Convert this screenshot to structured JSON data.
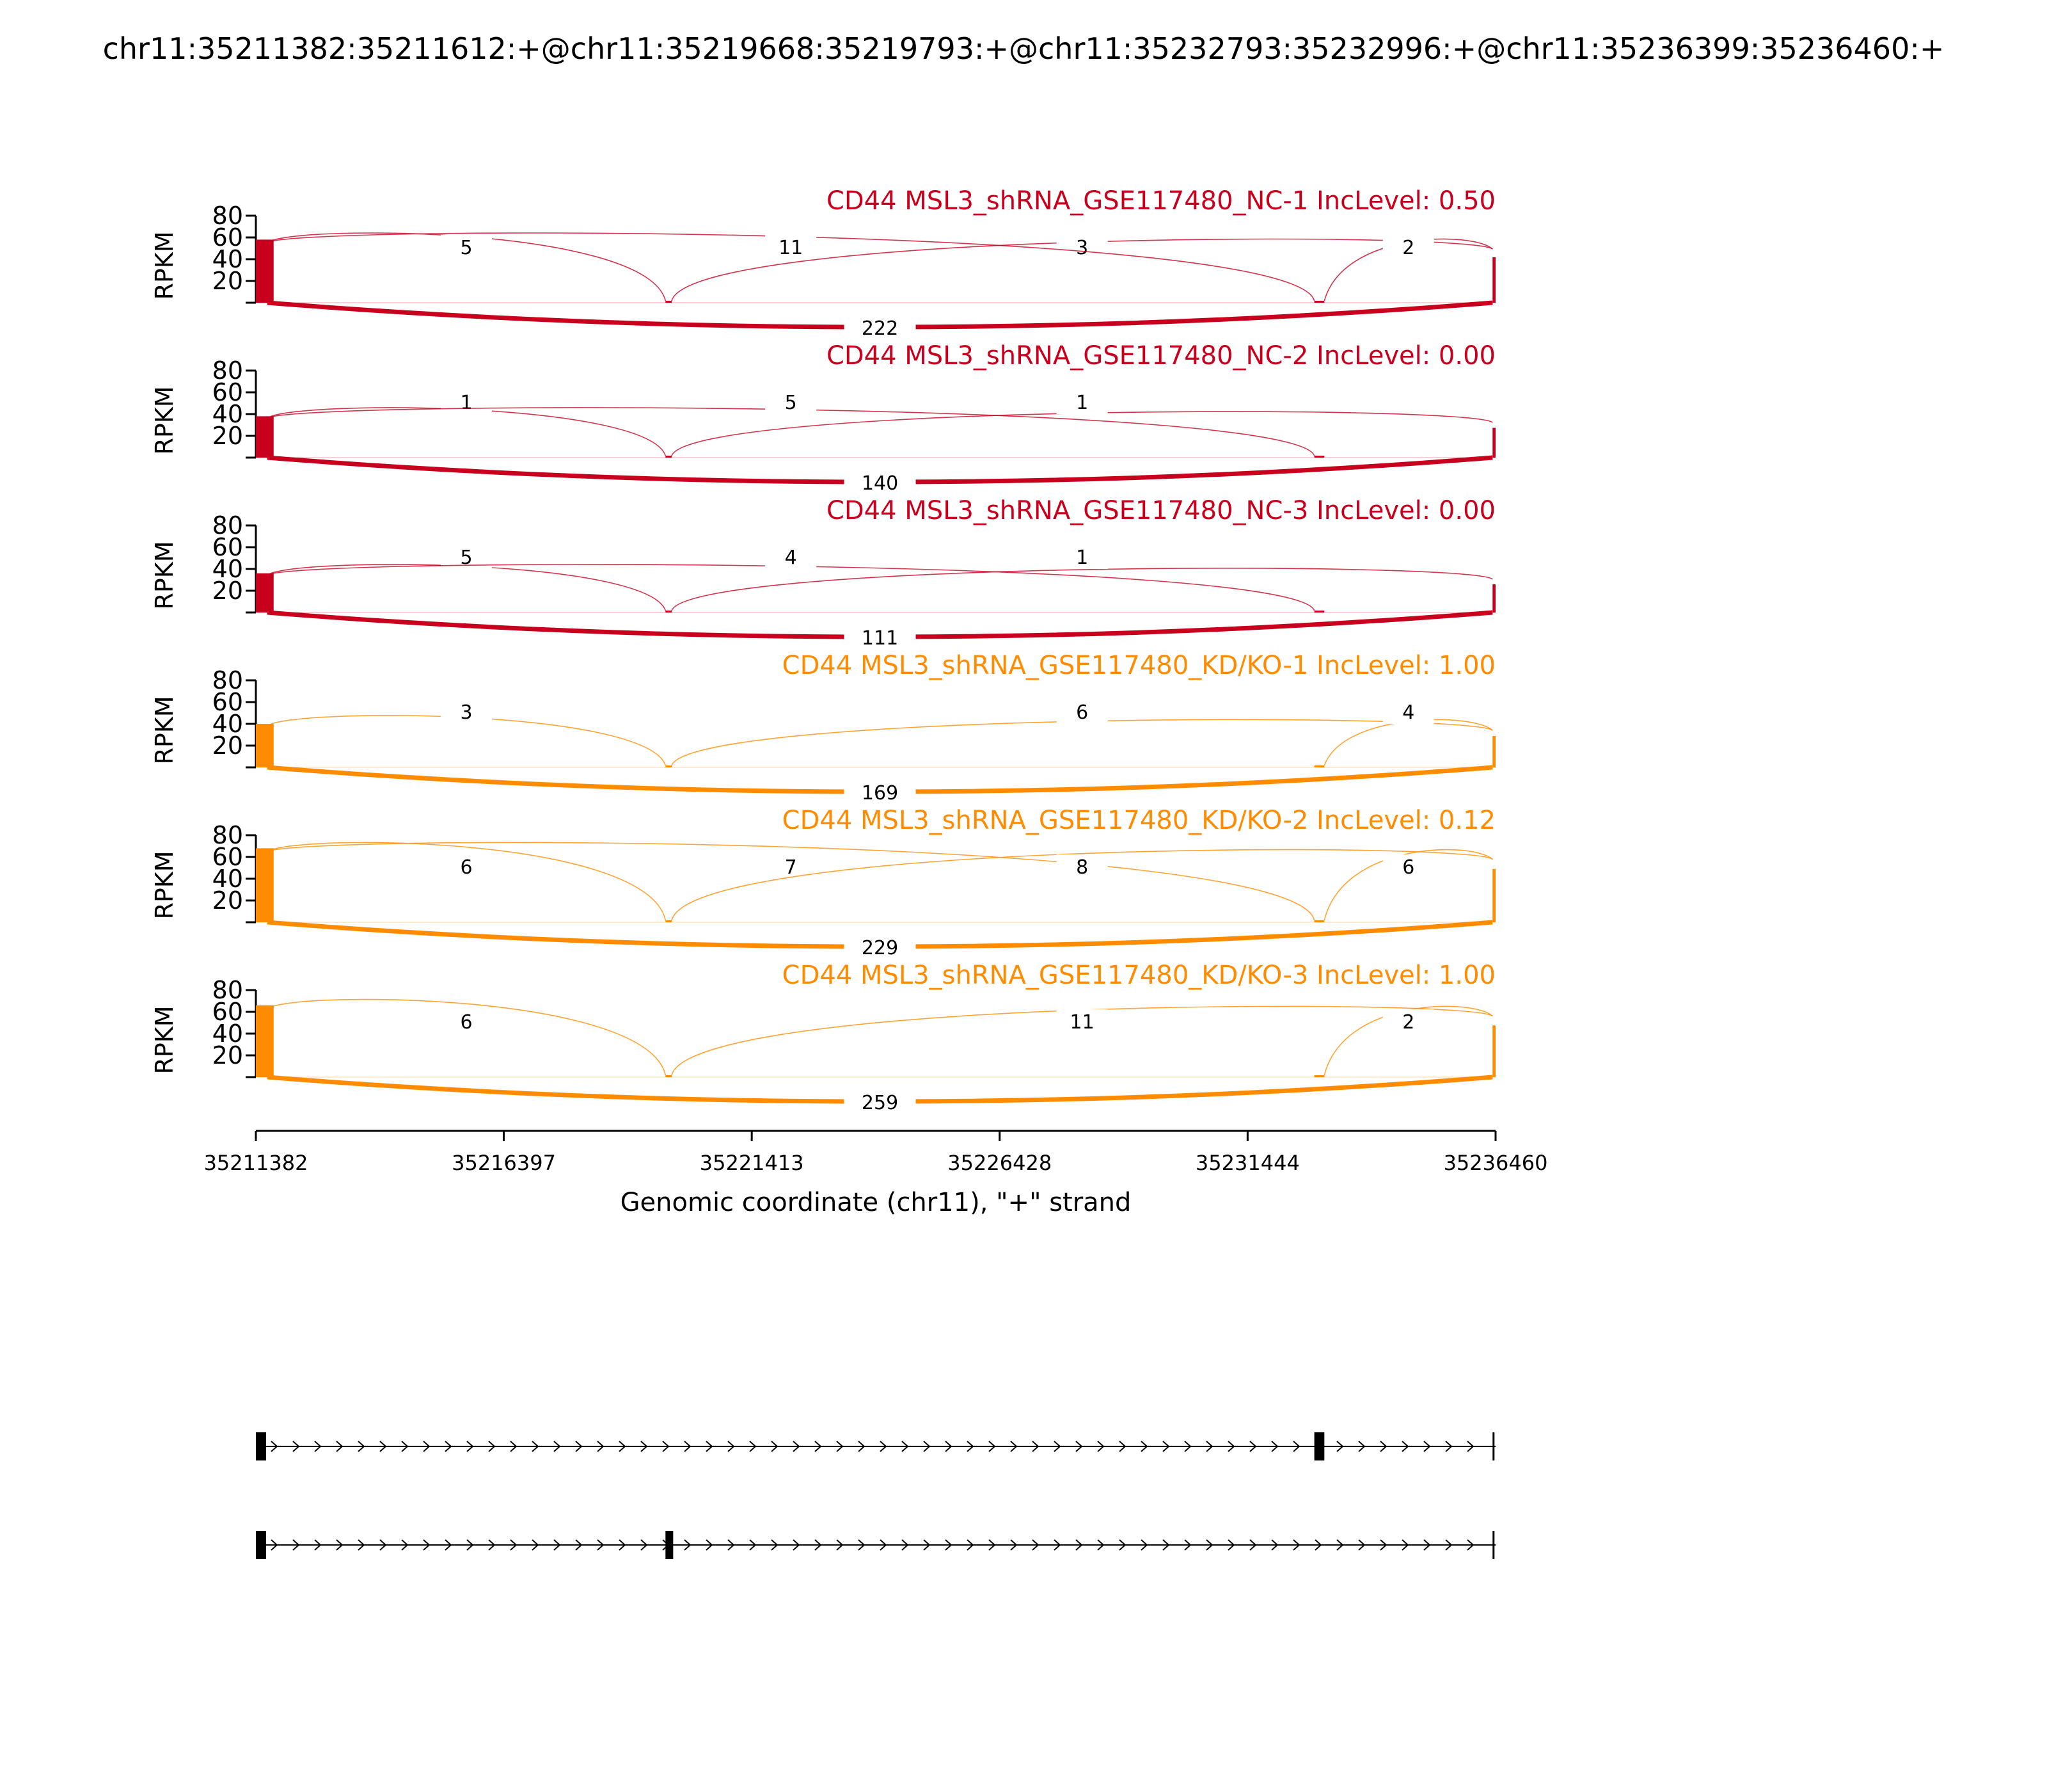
{
  "title": "chr11:35211382:35211612:+@chr11:35219668:35219793:+@chr11:35232793:35232996:+@chr11:35236399:35236460:+",
  "chart_data": {
    "type": "sashimi",
    "gene": "CD44",
    "ylabel": "RPKM",
    "yticks": [
      "80",
      "60",
      "40",
      "20"
    ],
    "ylim": [
      0,
      80
    ],
    "xlabel": "Genomic coordinate (chr11), \"+\" strand",
    "xlim": [
      35211382,
      35236460
    ],
    "xticks": [
      "35211382",
      "35216397",
      "35221413",
      "35226428",
      "35231444",
      "35236460"
    ],
    "exons": {
      "e1": [
        35211382,
        35211612
      ],
      "e2": [
        35219668,
        35219793
      ],
      "e3": [
        35232793,
        35232996
      ],
      "e4": [
        35236399,
        35236460
      ]
    },
    "tracks": [
      {
        "label": "CD44 MSL3_shRNA_GSE117480_NC-1 IncLevel: 0.50",
        "color": "#C8001E",
        "peak": 58,
        "junctions": [
          {
            "from": "e1",
            "to": "e2",
            "count": "5"
          },
          {
            "from": "e2",
            "to": "e4",
            "count": "3"
          },
          {
            "from": "e1",
            "to": "e3",
            "count": "11"
          },
          {
            "from": "e3",
            "to": "e4",
            "count": "2"
          },
          {
            "from": "e1",
            "to": "e4",
            "count": "222",
            "below": true
          }
        ]
      },
      {
        "label": "CD44 MSL3_shRNA_GSE117480_NC-2 IncLevel: 0.00",
        "color": "#C8001E",
        "peak": 38,
        "junctions": [
          {
            "from": "e1",
            "to": "e2",
            "count": "1"
          },
          {
            "from": "e2",
            "to": "e4",
            "count": "1"
          },
          {
            "from": "e1",
            "to": "e3",
            "count": "5"
          },
          {
            "from": "e1",
            "to": "e4",
            "count": "140",
            "below": true
          }
        ]
      },
      {
        "label": "CD44 MSL3_shRNA_GSE117480_NC-3 IncLevel: 0.00",
        "color": "#C8001E",
        "peak": 36,
        "junctions": [
          {
            "from": "e1",
            "to": "e2",
            "count": "5"
          },
          {
            "from": "e2",
            "to": "e4",
            "count": "1"
          },
          {
            "from": "e1",
            "to": "e3",
            "count": "4"
          },
          {
            "from": "e1",
            "to": "e4",
            "count": "111",
            "below": true
          }
        ]
      },
      {
        "label": "CD44 MSL3_shRNA_GSE117480_KD/KO-1 IncLevel: 1.00",
        "color": "#FF8C00",
        "peak": 40,
        "junctions": [
          {
            "from": "e1",
            "to": "e2",
            "count": "3"
          },
          {
            "from": "e2",
            "to": "e4",
            "count": "6"
          },
          {
            "from": "e3",
            "to": "e4",
            "count": "4"
          },
          {
            "from": "e1",
            "to": "e4",
            "count": "169",
            "below": true
          }
        ]
      },
      {
        "label": "CD44 MSL3_shRNA_GSE117480_KD/KO-2 IncLevel: 0.12",
        "color": "#FF8C00",
        "peak": 68,
        "junctions": [
          {
            "from": "e1",
            "to": "e2",
            "count": "6"
          },
          {
            "from": "e1",
            "to": "e3",
            "count": "7"
          },
          {
            "from": "e2",
            "to": "e4",
            "count": "8"
          },
          {
            "from": "e3",
            "to": "e4",
            "count": "6"
          },
          {
            "from": "e1",
            "to": "e4",
            "count": "229",
            "below": true
          }
        ]
      },
      {
        "label": "CD44 MSL3_shRNA_GSE117480_KD/KO-3 IncLevel: 1.00",
        "color": "#FF8C00",
        "peak": 66,
        "junctions": [
          {
            "from": "e1",
            "to": "e2",
            "count": "6"
          },
          {
            "from": "e2",
            "to": "e4",
            "count": "11"
          },
          {
            "from": "e3",
            "to": "e4",
            "count": "2"
          },
          {
            "from": "e1",
            "to": "e4",
            "count": "259",
            "below": true
          }
        ]
      }
    ],
    "isoforms": [
      {
        "exons": [
          "e1",
          "e3",
          "e4"
        ]
      },
      {
        "exons": [
          "e1",
          "e2",
          "e4"
        ]
      }
    ]
  }
}
